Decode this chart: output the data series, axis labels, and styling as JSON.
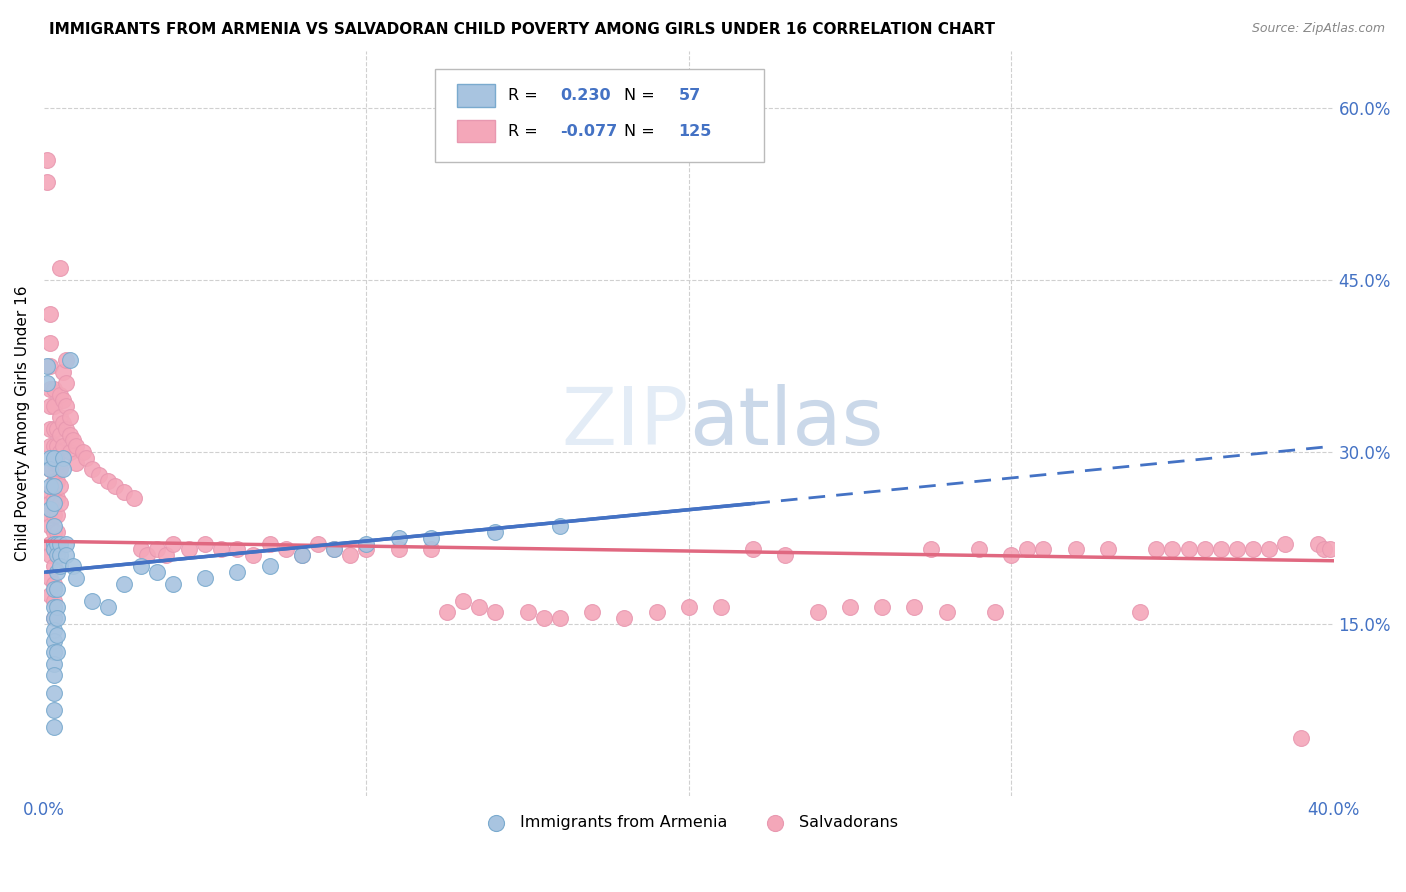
{
  "title": "IMMIGRANTS FROM ARMENIA VS SALVADORAN CHILD POVERTY AMONG GIRLS UNDER 16 CORRELATION CHART",
  "source": "Source: ZipAtlas.com",
  "ylabel": "Child Poverty Among Girls Under 16",
  "xlim": [
    0.0,
    0.4
  ],
  "ylim": [
    0.0,
    0.65
  ],
  "y_ticks_right": [
    0.15,
    0.3,
    0.45,
    0.6
  ],
  "y_tick_labels_right": [
    "15.0%",
    "30.0%",
    "45.0%",
    "60.0%"
  ],
  "blue_color": "#a8c4e0",
  "pink_color": "#f4a7b9",
  "blue_dot_edge": "#7aaace",
  "pink_dot_edge": "#e898b0",
  "blue_line_color": "#4472c4",
  "pink_line_color": "#e06880",
  "axis_label_color": "#4472c4",
  "grid_color": "#d0d0d0",
  "arm_line_x0": 0.0,
  "arm_line_y0": 0.195,
  "arm_line_x1": 0.22,
  "arm_line_y1": 0.255,
  "arm_line_x2": 0.4,
  "arm_line_y2": 0.305,
  "sal_line_x0": 0.0,
  "sal_line_y0": 0.222,
  "sal_line_x1": 0.4,
  "sal_line_y1": 0.205,
  "armenia_pts": [
    [
      0.001,
      0.375
    ],
    [
      0.001,
      0.36
    ],
    [
      0.002,
      0.295
    ],
    [
      0.002,
      0.285
    ],
    [
      0.002,
      0.27
    ],
    [
      0.002,
      0.25
    ],
    [
      0.003,
      0.295
    ],
    [
      0.003,
      0.27
    ],
    [
      0.003,
      0.255
    ],
    [
      0.003,
      0.235
    ],
    [
      0.003,
      0.22
    ],
    [
      0.003,
      0.215
    ],
    [
      0.003,
      0.18
    ],
    [
      0.003,
      0.165
    ],
    [
      0.003,
      0.155
    ],
    [
      0.003,
      0.145
    ],
    [
      0.003,
      0.135
    ],
    [
      0.003,
      0.125
    ],
    [
      0.003,
      0.115
    ],
    [
      0.003,
      0.105
    ],
    [
      0.003,
      0.09
    ],
    [
      0.003,
      0.075
    ],
    [
      0.003,
      0.06
    ],
    [
      0.004,
      0.22
    ],
    [
      0.004,
      0.21
    ],
    [
      0.004,
      0.195
    ],
    [
      0.004,
      0.18
    ],
    [
      0.004,
      0.165
    ],
    [
      0.004,
      0.155
    ],
    [
      0.004,
      0.14
    ],
    [
      0.004,
      0.125
    ],
    [
      0.005,
      0.22
    ],
    [
      0.005,
      0.21
    ],
    [
      0.005,
      0.2
    ],
    [
      0.006,
      0.295
    ],
    [
      0.006,
      0.285
    ],
    [
      0.007,
      0.22
    ],
    [
      0.007,
      0.21
    ],
    [
      0.008,
      0.38
    ],
    [
      0.009,
      0.2
    ],
    [
      0.01,
      0.19
    ],
    [
      0.015,
      0.17
    ],
    [
      0.02,
      0.165
    ],
    [
      0.025,
      0.185
    ],
    [
      0.03,
      0.2
    ],
    [
      0.035,
      0.195
    ],
    [
      0.04,
      0.185
    ],
    [
      0.05,
      0.19
    ],
    [
      0.06,
      0.195
    ],
    [
      0.07,
      0.2
    ],
    [
      0.08,
      0.21
    ],
    [
      0.09,
      0.215
    ],
    [
      0.1,
      0.22
    ],
    [
      0.11,
      0.225
    ],
    [
      0.12,
      0.225
    ],
    [
      0.14,
      0.23
    ],
    [
      0.16,
      0.235
    ]
  ],
  "salvador_pts": [
    [
      0.001,
      0.555
    ],
    [
      0.001,
      0.535
    ],
    [
      0.002,
      0.42
    ],
    [
      0.002,
      0.395
    ],
    [
      0.002,
      0.375
    ],
    [
      0.002,
      0.355
    ],
    [
      0.002,
      0.34
    ],
    [
      0.002,
      0.32
    ],
    [
      0.002,
      0.305
    ],
    [
      0.002,
      0.285
    ],
    [
      0.002,
      0.265
    ],
    [
      0.002,
      0.255
    ],
    [
      0.002,
      0.245
    ],
    [
      0.002,
      0.235
    ],
    [
      0.002,
      0.22
    ],
    [
      0.002,
      0.21
    ],
    [
      0.002,
      0.19
    ],
    [
      0.002,
      0.175
    ],
    [
      0.003,
      0.355
    ],
    [
      0.003,
      0.34
    ],
    [
      0.003,
      0.32
    ],
    [
      0.003,
      0.305
    ],
    [
      0.003,
      0.29
    ],
    [
      0.003,
      0.275
    ],
    [
      0.003,
      0.26
    ],
    [
      0.003,
      0.245
    ],
    [
      0.003,
      0.23
    ],
    [
      0.003,
      0.215
    ],
    [
      0.003,
      0.2
    ],
    [
      0.003,
      0.185
    ],
    [
      0.003,
      0.17
    ],
    [
      0.003,
      0.155
    ],
    [
      0.004,
      0.32
    ],
    [
      0.004,
      0.305
    ],
    [
      0.004,
      0.29
    ],
    [
      0.004,
      0.275
    ],
    [
      0.004,
      0.26
    ],
    [
      0.004,
      0.245
    ],
    [
      0.004,
      0.23
    ],
    [
      0.004,
      0.215
    ],
    [
      0.005,
      0.46
    ],
    [
      0.005,
      0.35
    ],
    [
      0.005,
      0.33
    ],
    [
      0.005,
      0.315
    ],
    [
      0.005,
      0.3
    ],
    [
      0.005,
      0.285
    ],
    [
      0.005,
      0.27
    ],
    [
      0.005,
      0.255
    ],
    [
      0.006,
      0.37
    ],
    [
      0.006,
      0.345
    ],
    [
      0.006,
      0.325
    ],
    [
      0.006,
      0.305
    ],
    [
      0.007,
      0.38
    ],
    [
      0.007,
      0.36
    ],
    [
      0.007,
      0.34
    ],
    [
      0.007,
      0.32
    ],
    [
      0.008,
      0.33
    ],
    [
      0.008,
      0.315
    ],
    [
      0.008,
      0.3
    ],
    [
      0.009,
      0.31
    ],
    [
      0.01,
      0.305
    ],
    [
      0.01,
      0.29
    ],
    [
      0.012,
      0.3
    ],
    [
      0.013,
      0.295
    ],
    [
      0.015,
      0.285
    ],
    [
      0.017,
      0.28
    ],
    [
      0.02,
      0.275
    ],
    [
      0.022,
      0.27
    ],
    [
      0.025,
      0.265
    ],
    [
      0.028,
      0.26
    ],
    [
      0.03,
      0.215
    ],
    [
      0.032,
      0.21
    ],
    [
      0.035,
      0.215
    ],
    [
      0.038,
      0.21
    ],
    [
      0.04,
      0.22
    ],
    [
      0.045,
      0.215
    ],
    [
      0.05,
      0.22
    ],
    [
      0.055,
      0.215
    ],
    [
      0.06,
      0.215
    ],
    [
      0.065,
      0.21
    ],
    [
      0.07,
      0.22
    ],
    [
      0.075,
      0.215
    ],
    [
      0.08,
      0.21
    ],
    [
      0.085,
      0.22
    ],
    [
      0.09,
      0.215
    ],
    [
      0.095,
      0.21
    ],
    [
      0.1,
      0.215
    ],
    [
      0.11,
      0.215
    ],
    [
      0.12,
      0.215
    ],
    [
      0.125,
      0.16
    ],
    [
      0.13,
      0.17
    ],
    [
      0.135,
      0.165
    ],
    [
      0.14,
      0.16
    ],
    [
      0.15,
      0.16
    ],
    [
      0.155,
      0.155
    ],
    [
      0.16,
      0.155
    ],
    [
      0.17,
      0.16
    ],
    [
      0.18,
      0.155
    ],
    [
      0.19,
      0.16
    ],
    [
      0.2,
      0.165
    ],
    [
      0.21,
      0.165
    ],
    [
      0.22,
      0.215
    ],
    [
      0.23,
      0.21
    ],
    [
      0.24,
      0.16
    ],
    [
      0.25,
      0.165
    ],
    [
      0.26,
      0.165
    ],
    [
      0.27,
      0.165
    ],
    [
      0.275,
      0.215
    ],
    [
      0.28,
      0.16
    ],
    [
      0.29,
      0.215
    ],
    [
      0.295,
      0.16
    ],
    [
      0.3,
      0.21
    ],
    [
      0.305,
      0.215
    ],
    [
      0.31,
      0.215
    ],
    [
      0.32,
      0.215
    ],
    [
      0.33,
      0.215
    ],
    [
      0.34,
      0.16
    ],
    [
      0.345,
      0.215
    ],
    [
      0.35,
      0.215
    ],
    [
      0.355,
      0.215
    ],
    [
      0.36,
      0.215
    ],
    [
      0.365,
      0.215
    ],
    [
      0.37,
      0.215
    ],
    [
      0.375,
      0.215
    ],
    [
      0.38,
      0.215
    ],
    [
      0.385,
      0.22
    ],
    [
      0.39,
      0.05
    ],
    [
      0.395,
      0.22
    ],
    [
      0.397,
      0.215
    ],
    [
      0.399,
      0.215
    ]
  ]
}
